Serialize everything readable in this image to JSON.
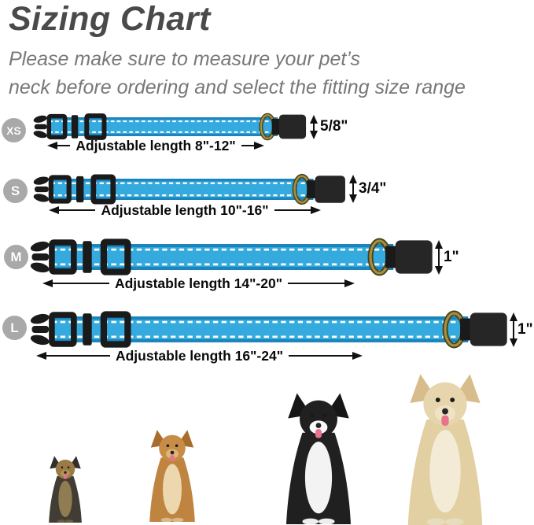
{
  "header": {
    "title": "Sizing Chart",
    "subtitle_line1": "Please make sure to measure your pet’s",
    "subtitle_line2": "neck before ordering and select the fitting size range"
  },
  "sizes": [
    {
      "label": "XS",
      "width": "5/8\"",
      "length": "Adjustable length 8\"-12\""
    },
    {
      "label": "S",
      "width": "3/4\"",
      "length": "Adjustable length 10\"-16\""
    },
    {
      "label": "M",
      "width": "1\"",
      "length": "Adjustable length 14\"-20\""
    },
    {
      "label": "L",
      "width": "1\"",
      "length": "Adjustable length 16\"-24\""
    }
  ],
  "dogs": [
    {
      "name": "yorkshire-terrier-photo"
    },
    {
      "name": "chihuahua-photo"
    },
    {
      "name": "border-collie-photo"
    },
    {
      "name": "golden-retriever-photo"
    }
  ],
  "colors": {
    "collar_blue": "#35aade",
    "collar_edge": "#1b86be",
    "stitch_white": "#ffffff",
    "hardware_black": "#1a1a1a",
    "buckle_body": "#262626",
    "dring_brass": "#a2913f",
    "dring_dark": "#4a431f",
    "badge_gray": "#a9a9a9",
    "title_gray": "#4a4a4a",
    "subtitle_gray": "#787878",
    "text_black": "#0a0a0a"
  }
}
